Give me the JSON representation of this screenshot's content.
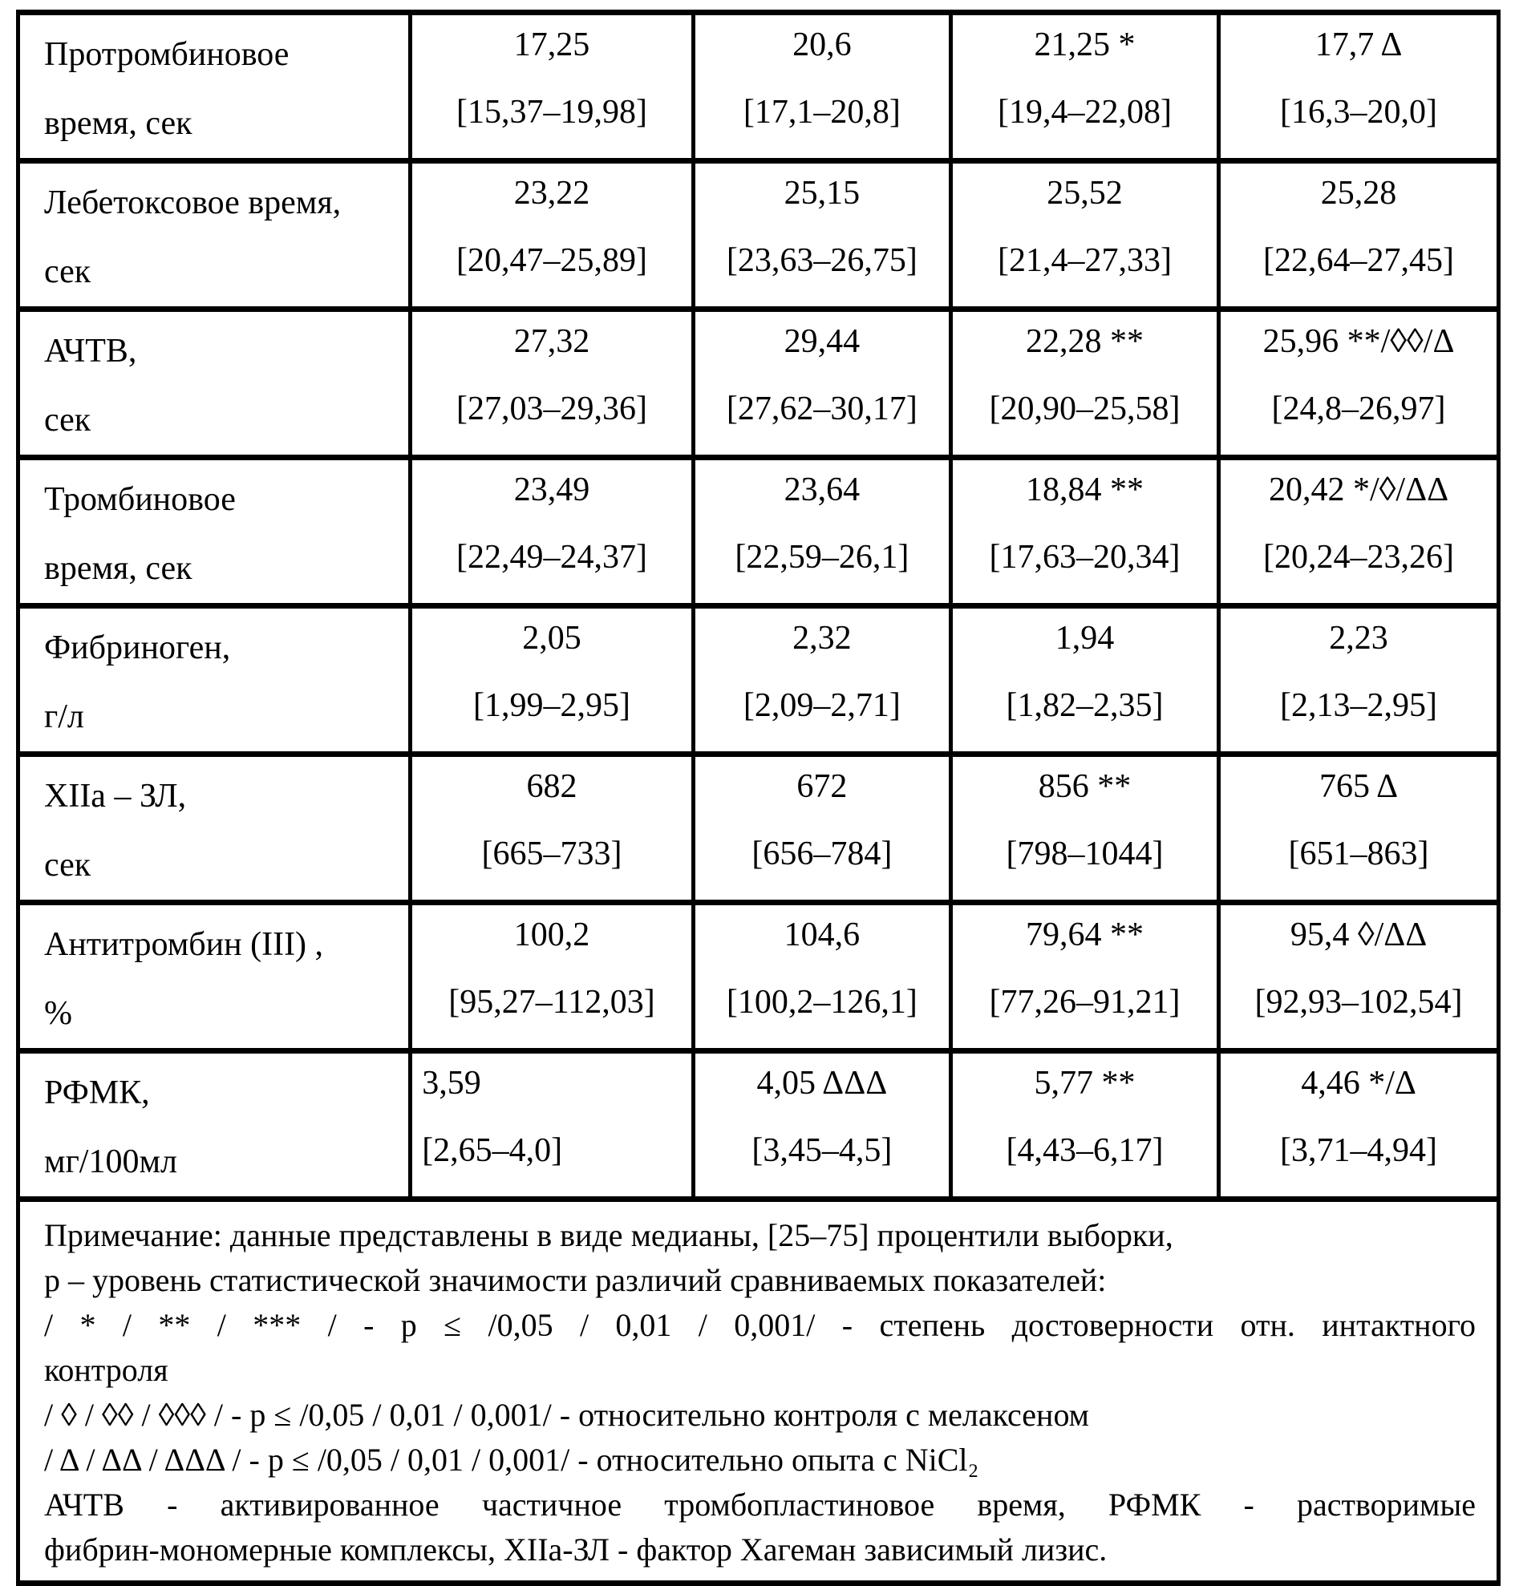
{
  "colors": {
    "background": "#ffffff",
    "text": "#000000",
    "border": "#000000"
  },
  "table": {
    "rows": [
      {
        "label": "Протромбиновое\nвремя, сек",
        "values": [
          {
            "median": "17,25",
            "range": "[15,37–19,98]"
          },
          {
            "median": "20,6",
            "range": "[17,1–20,8]"
          },
          {
            "median": "21,25 *",
            "range": "[19,4–22,08]"
          },
          {
            "median": "17,7 Δ",
            "range": "[16,3–20,0]"
          }
        ]
      },
      {
        "label": "Лебетоксовое время,\nсек",
        "values": [
          {
            "median": "23,22",
            "range": "[20,47–25,89]"
          },
          {
            "median": "25,15",
            "range": "[23,63–26,75]"
          },
          {
            "median": "25,52",
            "range": "[21,4–27,33]"
          },
          {
            "median": "25,28",
            "range": "[22,64–27,45]"
          }
        ]
      },
      {
        "label": "АЧТВ,\nсек",
        "values": [
          {
            "median": "27,32",
            "range": "[27,03–29,36]"
          },
          {
            "median": "29,44",
            "range": "[27,62–30,17]"
          },
          {
            "median": "22,28 **",
            "range": "[20,90–25,58]"
          },
          {
            "median": "25,96 **/◊◊/Δ",
            "range": "[24,8–26,97]"
          }
        ]
      },
      {
        "label": "Тромбиновое\nвремя, сек",
        "values": [
          {
            "median": "23,49",
            "range": "[22,49–24,37]"
          },
          {
            "median": "23,64",
            "range": "[22,59–26,1]"
          },
          {
            "median": "18,84 **",
            "range": "[17,63–20,34]"
          },
          {
            "median": "20,42 */◊/ΔΔ",
            "range": "[20,24–23,26]"
          }
        ]
      },
      {
        "label": "Фибриноген,\nг/л",
        "values": [
          {
            "median": "2,05",
            "range": "[1,99–2,95]"
          },
          {
            "median": "2,32",
            "range": "[2,09–2,71]"
          },
          {
            "median": "1,94",
            "range": "[1,82–2,35]"
          },
          {
            "median": "2,23",
            "range": "[2,13–2,95]"
          }
        ]
      },
      {
        "label": "XIIa – ЗЛ,\nсек",
        "values": [
          {
            "median": "682",
            "range": "[665–733]"
          },
          {
            "median": "672",
            "range": "[656–784]"
          },
          {
            "median": "856 **",
            "range": "[798–1044]"
          },
          {
            "median": "765 Δ",
            "range": "[651–863]"
          }
        ]
      },
      {
        "label": "Антитромбин (III) ,\n%",
        "values": [
          {
            "median": "100,2",
            "range": "[95,27–112,03]"
          },
          {
            "median": "104,6",
            "range": "[100,2–126,1]"
          },
          {
            "median": "79,64 **",
            "range": "[77,26–91,21]"
          },
          {
            "median": "95,4 ◊/ΔΔ",
            "range": "[92,93–102,54]"
          }
        ]
      },
      {
        "label": "РФМК,\nмг/100мл",
        "values": [
          {
            "median": "3,59",
            "range": "[2,65–4,0]"
          },
          {
            "median": "4,05 ΔΔΔ",
            "range": "[3,45–4,5]"
          },
          {
            "median": "5,77 **",
            "range": "[4,43–6,17]"
          },
          {
            "median": "4,46 */Δ",
            "range": "[3,71–4,94]"
          }
        ]
      }
    ]
  },
  "notes": {
    "lines": [
      "Примечание: данные представлены в виде медианы, [25–75] процентили выборки,",
      "р – уровень статистической значимости различий сравниваемых показателей:",
      "/ * / ** / *** / - р ≤ /0,05 / 0,01 / 0,001/ - степень достоверности отн. интактного",
      "контроля",
      "/ ◊ / ◊◊ / ◊◊◊ / - р ≤ /0,05 / 0,01 / 0,001/ - относительно контроля с мелаксеном",
      "/ Δ / ΔΔ / ΔΔΔ / - р ≤ /0,05 / 0,01 / 0,001/ - относительно опыта с NiCl₂",
      "АЧТВ - активированное частичное тромбопластиновое время, РФМК - растворимые",
      "фибрин-мономерные комплексы, XIIa-ЗЛ - фактор Хагеман зависимый лизис."
    ]
  }
}
